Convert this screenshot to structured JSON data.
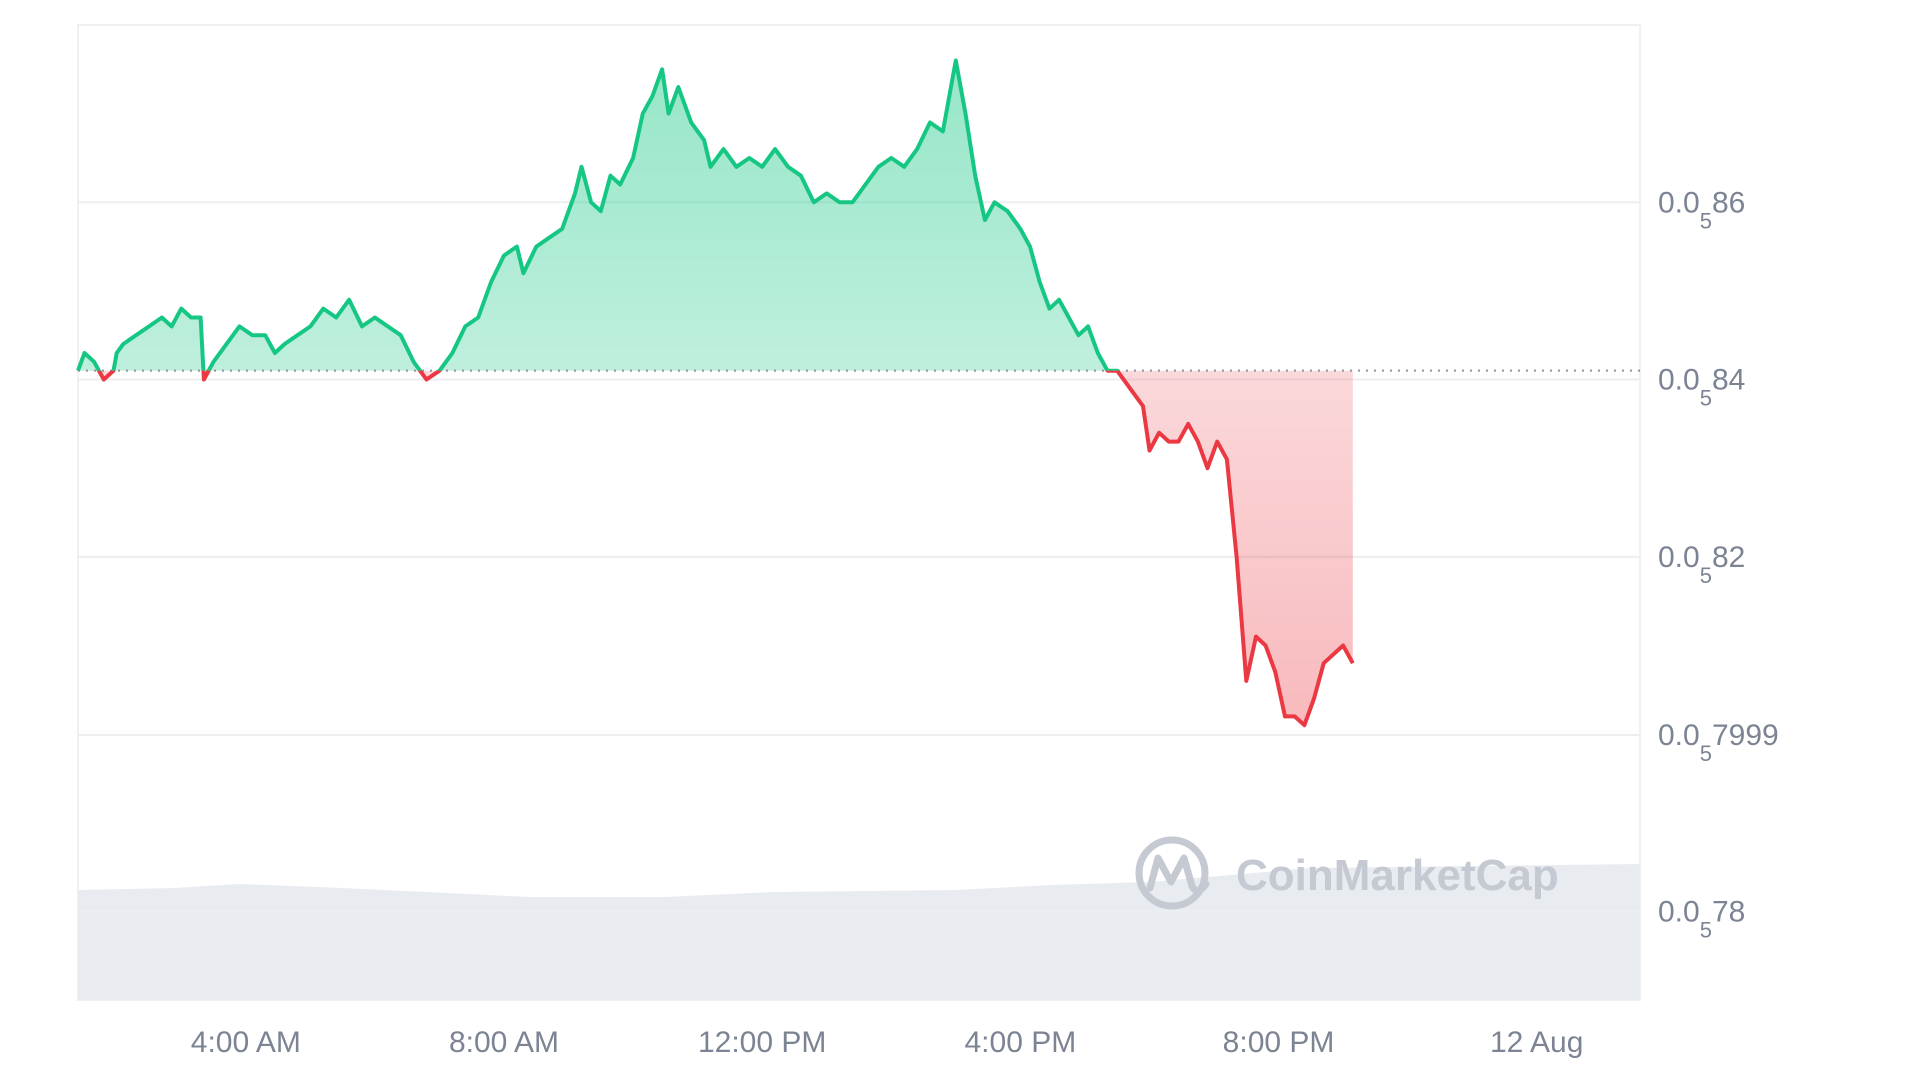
{
  "chart_data": {
    "type": "area",
    "title": "",
    "baseline": 8.41e-06,
    "ylim": [
      7.7e-06,
      8.8e-06
    ],
    "y_ticks": [
      {
        "value": 8.6e-06,
        "prefix": "0.0",
        "sub": "5",
        "digits": "86"
      },
      {
        "value": 8.4e-06,
        "prefix": "0.0",
        "sub": "5",
        "digits": "84"
      },
      {
        "value": 8.2e-06,
        "prefix": "0.0",
        "sub": "5",
        "digits": "82"
      },
      {
        "value": 7.999e-06,
        "prefix": "0.0",
        "sub": "5",
        "digits": "7999"
      },
      {
        "value": 7.8e-06,
        "prefix": "0.0",
        "sub": "5",
        "digits": "78"
      }
    ],
    "x_range_hours": [
      1.4,
      25.6
    ],
    "x_ticks": [
      {
        "hour": 4,
        "label": "4:00 AM"
      },
      {
        "hour": 8,
        "label": "8:00 AM"
      },
      {
        "hour": 12,
        "label": "12:00 PM"
      },
      {
        "hour": 16,
        "label": "4:00 PM"
      },
      {
        "hour": 20,
        "label": "8:00 PM"
      },
      {
        "hour": 24,
        "label": "12 Aug"
      }
    ],
    "up_color": "#16c784",
    "down_color": "#ea3943",
    "volume_color": "#e8ebf0",
    "series": [
      {
        "points": [
          [
            1.4,
            8.41e-06
          ],
          [
            1.5,
            8.43e-06
          ],
          [
            1.65,
            8.42e-06
          ],
          [
            1.8,
            8.4e-06
          ],
          [
            1.95,
            8.41e-06
          ],
          [
            2.0,
            8.43e-06
          ],
          [
            2.1,
            8.44e-06
          ],
          [
            2.3,
            8.45e-06
          ],
          [
            2.5,
            8.46e-06
          ],
          [
            2.7,
            8.47e-06
          ],
          [
            2.85,
            8.46e-06
          ],
          [
            3.0,
            8.48e-06
          ],
          [
            3.15,
            8.47e-06
          ],
          [
            3.3,
            8.47e-06
          ],
          [
            3.35,
            8.4e-06
          ],
          [
            3.5,
            8.42e-06
          ],
          [
            3.7,
            8.44e-06
          ],
          [
            3.9,
            8.46e-06
          ],
          [
            4.1,
            8.45e-06
          ],
          [
            4.3,
            8.45e-06
          ],
          [
            4.45,
            8.43e-06
          ],
          [
            4.6,
            8.44e-06
          ],
          [
            4.8,
            8.45e-06
          ],
          [
            5.0,
            8.46e-06
          ],
          [
            5.2,
            8.48e-06
          ],
          [
            5.4,
            8.47e-06
          ],
          [
            5.6,
            8.49e-06
          ],
          [
            5.8,
            8.46e-06
          ],
          [
            6.0,
            8.47e-06
          ],
          [
            6.2,
            8.46e-06
          ],
          [
            6.4,
            8.45e-06
          ],
          [
            6.6,
            8.42e-06
          ],
          [
            6.8,
            8.4e-06
          ],
          [
            7.0,
            8.41e-06
          ],
          [
            7.2,
            8.43e-06
          ],
          [
            7.4,
            8.46e-06
          ],
          [
            7.6,
            8.47e-06
          ],
          [
            7.8,
            8.51e-06
          ],
          [
            8.0,
            8.54e-06
          ],
          [
            8.2,
            8.55e-06
          ],
          [
            8.3,
            8.52e-06
          ],
          [
            8.5,
            8.55e-06
          ],
          [
            8.7,
            8.56e-06
          ],
          [
            8.9,
            8.57e-06
          ],
          [
            9.1,
            8.61e-06
          ],
          [
            9.2,
            8.64e-06
          ],
          [
            9.35,
            8.6e-06
          ],
          [
            9.5,
            8.59e-06
          ],
          [
            9.65,
            8.63e-06
          ],
          [
            9.8,
            8.62e-06
          ],
          [
            10.0,
            8.65e-06
          ],
          [
            10.15,
            8.7e-06
          ],
          [
            10.3,
            8.72e-06
          ],
          [
            10.45,
            8.75e-06
          ],
          [
            10.55,
            8.7e-06
          ],
          [
            10.7,
            8.73e-06
          ],
          [
            10.9,
            8.69e-06
          ],
          [
            11.1,
            8.67e-06
          ],
          [
            11.2,
            8.64e-06
          ],
          [
            11.4,
            8.66e-06
          ],
          [
            11.6,
            8.64e-06
          ],
          [
            11.8,
            8.65e-06
          ],
          [
            12.0,
            8.64e-06
          ],
          [
            12.2,
            8.66e-06
          ],
          [
            12.4,
            8.64e-06
          ],
          [
            12.6,
            8.63e-06
          ],
          [
            12.8,
            8.6e-06
          ],
          [
            13.0,
            8.61e-06
          ],
          [
            13.2,
            8.6e-06
          ],
          [
            13.4,
            8.6e-06
          ],
          [
            13.6,
            8.62e-06
          ],
          [
            13.8,
            8.64e-06
          ],
          [
            14.0,
            8.65e-06
          ],
          [
            14.2,
            8.64e-06
          ],
          [
            14.4,
            8.66e-06
          ],
          [
            14.6,
            8.69e-06
          ],
          [
            14.8,
            8.68e-06
          ],
          [
            15.0,
            8.76e-06
          ],
          [
            15.15,
            8.7e-06
          ],
          [
            15.3,
            8.63e-06
          ],
          [
            15.45,
            8.58e-06
          ],
          [
            15.6,
            8.6e-06
          ],
          [
            15.8,
            8.59e-06
          ],
          [
            16.0,
            8.57e-06
          ],
          [
            16.15,
            8.55e-06
          ],
          [
            16.3,
            8.51e-06
          ],
          [
            16.45,
            8.48e-06
          ],
          [
            16.6,
            8.49e-06
          ],
          [
            16.75,
            8.47e-06
          ],
          [
            16.9,
            8.45e-06
          ],
          [
            17.05,
            8.46e-06
          ],
          [
            17.2,
            8.43e-06
          ],
          [
            17.35,
            8.41e-06
          ],
          [
            17.5,
            8.41e-06
          ],
          [
            17.7,
            8.39e-06
          ],
          [
            17.9,
            8.37e-06
          ],
          [
            18.0,
            8.32e-06
          ],
          [
            18.15,
            8.34e-06
          ],
          [
            18.3,
            8.33e-06
          ],
          [
            18.45,
            8.33e-06
          ],
          [
            18.6,
            8.35e-06
          ],
          [
            18.75,
            8.33e-06
          ],
          [
            18.9,
            8.3e-06
          ],
          [
            19.05,
            8.33e-06
          ],
          [
            19.2,
            8.31e-06
          ],
          [
            19.35,
            8.2e-06
          ],
          [
            19.5,
            8.06e-06
          ],
          [
            19.65,
            8.11e-06
          ],
          [
            19.8,
            8.1e-06
          ],
          [
            19.95,
            8.07e-06
          ],
          [
            20.1,
            8.02e-06
          ],
          [
            20.25,
            8.02e-06
          ],
          [
            20.4,
            8.01e-06
          ],
          [
            20.55,
            8.04e-06
          ],
          [
            20.7,
            8.08e-06
          ],
          [
            20.85,
            8.09e-06
          ],
          [
            21.0,
            8.1e-06
          ],
          [
            21.15,
            8.08e-06
          ]
        ]
      }
    ]
  },
  "watermark": {
    "brand": "CoinMarketCap"
  }
}
